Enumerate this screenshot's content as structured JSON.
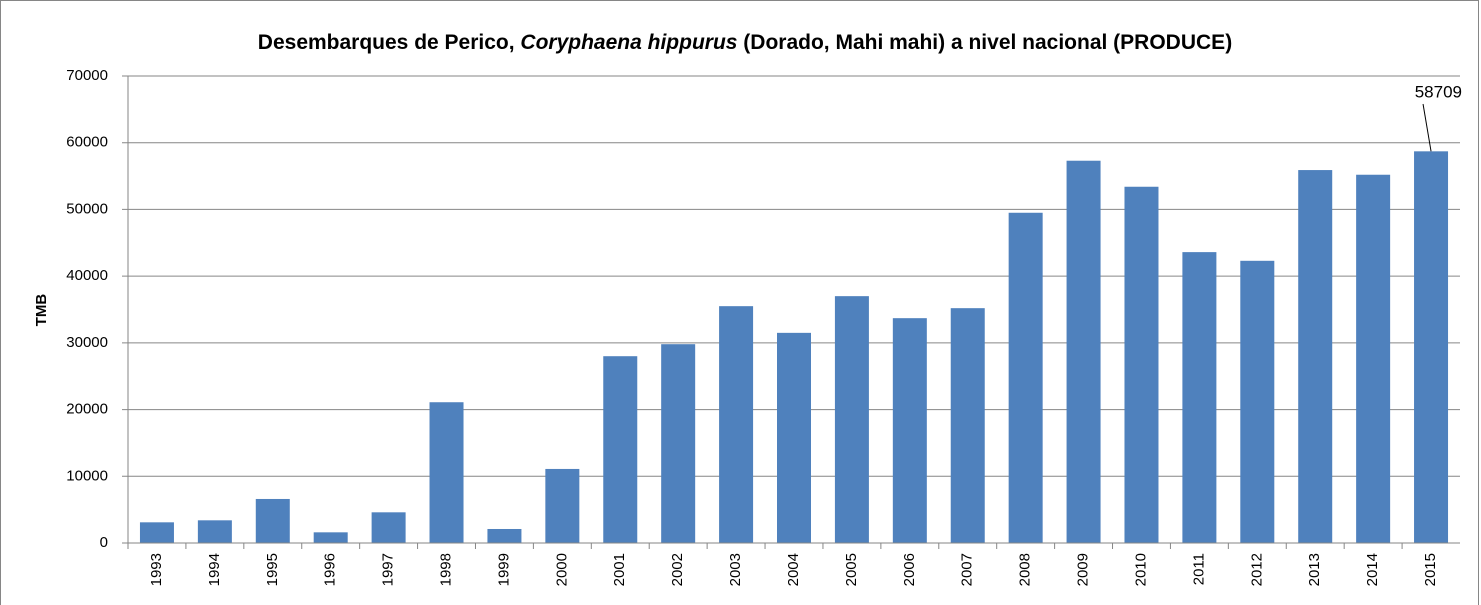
{
  "chart_data": {
    "type": "bar",
    "title": [
      {
        "text": "Desembarques de Perico, ",
        "italic": false
      },
      {
        "text": "Coryphaena hippurus",
        "italic": true
      },
      {
        "text": " (Dorado, Mahi mahi) a nivel nacional (PRODUCE)",
        "italic": false
      }
    ],
    "ylabel": "TMB",
    "categories": [
      "1993",
      "1994",
      "1995",
      "1996",
      "1997",
      "1998",
      "1999",
      "2000",
      "2001",
      "2002",
      "2003",
      "2004",
      "2005",
      "2006",
      "2007",
      "2008",
      "2009",
      "2010",
      "2011",
      "2012",
      "2013",
      "2014",
      "2015"
    ],
    "values": [
      3100,
      3400,
      6600,
      1600,
      4600,
      21100,
      2100,
      11100,
      28000,
      29800,
      35500,
      31500,
      37000,
      33700,
      35200,
      49500,
      57300,
      53400,
      43600,
      42300,
      55900,
      55200,
      58709
    ],
    "value_labels": [
      null,
      null,
      null,
      null,
      null,
      null,
      null,
      null,
      null,
      null,
      null,
      null,
      null,
      null,
      null,
      null,
      null,
      null,
      null,
      null,
      null,
      null,
      "58709"
    ],
    "color": "#4f81bd",
    "ylim": [
      0,
      70000
    ],
    "yticks": [
      0,
      10000,
      20000,
      30000,
      40000,
      50000,
      60000,
      70000
    ],
    "grid": true
  }
}
